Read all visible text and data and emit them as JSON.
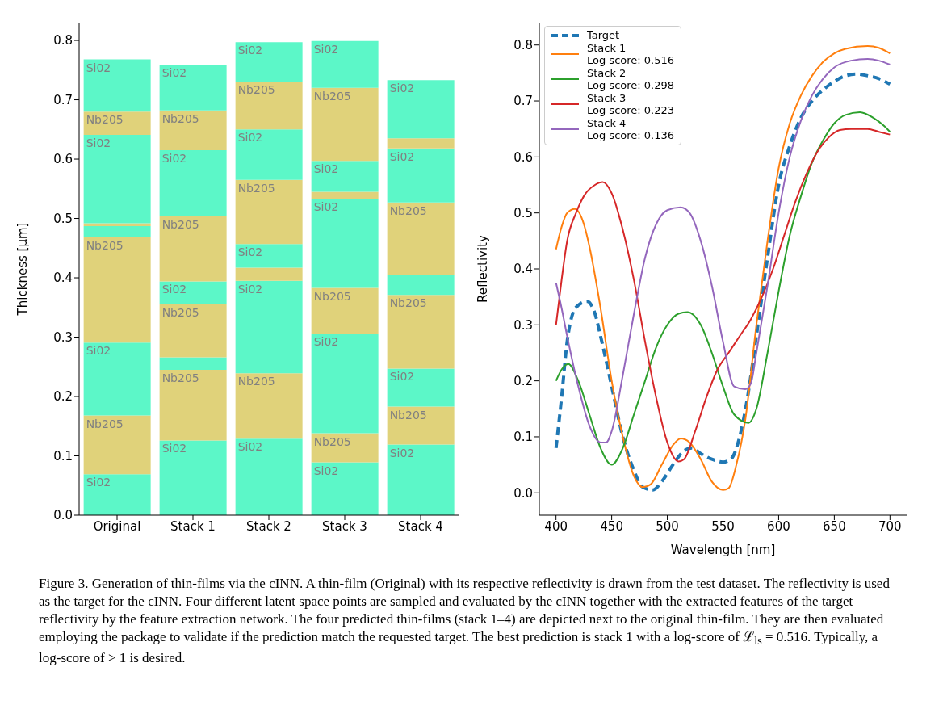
{
  "chart_data": [
    {
      "type": "bar",
      "stacked": true,
      "ylabel": "Thickness [μm]",
      "categories": [
        "Original",
        "Stack 1",
        "Stack 2",
        "Stack 3",
        "Stack 4"
      ],
      "ylim": [
        0,
        0.83
      ],
      "yticks": [
        {
          "value": 0,
          "label": "0.0"
        },
        0.1,
        0.2,
        0.3,
        0.4,
        0.5,
        0.6,
        0.7,
        0.8
      ],
      "grid": false,
      "series": [
        {
          "color": "#5cf7c8",
          "values": [
            0.069,
            0.126,
            0.129,
            0.089,
            0.119
          ],
          "value_labels": [
            "Si02",
            "Si02",
            "Si02",
            "Si02",
            "Si02"
          ]
        },
        {
          "color": "#e0d27a",
          "values": [
            0.099,
            0.119,
            0.11,
            0.049,
            0.064
          ],
          "value_labels": [
            "Nb205",
            "Nb205",
            "Nb205",
            "Nb205",
            "Nb205"
          ]
        },
        {
          "color": "#5cf7c8",
          "values": [
            0.123,
            0.021,
            0.156,
            0.168,
            0.064
          ],
          "value_labels": [
            "Si02",
            null,
            "Si02",
            "Si02",
            "Si02"
          ]
        },
        {
          "color": "#e0d27a",
          "values": [
            0.177,
            0.089,
            0.022,
            0.077,
            0.124
          ],
          "value_labels": [
            "Nb205",
            "Nb205",
            null,
            "Nb205",
            "Nb205"
          ]
        },
        {
          "color": "#5cf7c8",
          "values": [
            0.019,
            0.039,
            0.04,
            0.15,
            0.034
          ],
          "value_labels": [
            null,
            "Si02",
            "Si02",
            "Si02",
            null
          ]
        },
        {
          "color": "#e0d27a",
          "values": [
            0.005,
            0.11,
            0.108,
            0.012,
            0.122
          ],
          "value_labels": [
            null,
            "Nb205",
            "Nb205",
            null,
            "Nb205"
          ]
        },
        {
          "color": "#5cf7c8",
          "values": [
            0.149,
            0.111,
            0.085,
            0.052,
            0.091
          ],
          "value_labels": [
            "Si02",
            "Si02",
            "Si02",
            "Si02",
            "Si02"
          ]
        },
        {
          "color": "#e0d27a",
          "values": [
            0.039,
            0.067,
            0.08,
            0.123,
            0.017
          ],
          "value_labels": [
            "Nb205",
            "Nb205",
            "Nb205",
            "Nb205",
            null
          ]
        },
        {
          "color": "#5cf7c8",
          "values": [
            0.088,
            0.077,
            0.067,
            0.079,
            0.098
          ],
          "value_labels": [
            "Si02",
            "Si02",
            "Si02",
            "Si02",
            "Si02"
          ]
        }
      ]
    },
    {
      "type": "line",
      "xlabel": "Wavelength [nm]",
      "ylabel": "Reflectivity",
      "xlim": [
        385,
        715
      ],
      "xticks": [
        400,
        450,
        500,
        550,
        600,
        650,
        700
      ],
      "ylim": [
        -0.04,
        0.84
      ],
      "yticks": [
        {
          "value": 0,
          "label": "0.0"
        },
        0.1,
        0.2,
        0.3,
        0.4,
        0.5,
        0.6,
        0.7,
        0.8
      ],
      "grid": false,
      "legend": "top left",
      "annotations": [
        "Figure 3. Generation of thin-films via the cINN. A thin-film (Original) with its respective reflectivity is drawn from the test dataset. The reflectivity is used as the target for the cINN. Four different latent space points are sampled and evaluated by the cINN together with the extracted features of the target reflectivity by the feature extraction network. The four predicted thin-films (stack 1–4) are depicted next to the original thin-film. They are then evaluated employing the package to validate if the prediction match the requested target. The best prediction is stack 1 with a log-score of ℒ$_{ls}$ = 0.516. Typically, a log-score of > 1 is desired."
      ],
      "series": [
        {
          "name": "Target",
          "color": "#1f77b4",
          "line_style": "dashed",
          "x": [
            400,
            405,
            410,
            415,
            420,
            428,
            435,
            440,
            450,
            460,
            470,
            478,
            487,
            495,
            505,
            515,
            522,
            530,
            540,
            550,
            557,
            565,
            572,
            580,
            590,
            600,
            610,
            620,
            630,
            640,
            650,
            660,
            670,
            680,
            690,
            700
          ],
          "values": [
            0.08,
            0.17,
            0.27,
            0.32,
            0.335,
            0.342,
            0.32,
            0.28,
            0.19,
            0.1,
            0.04,
            0.01,
            0.005,
            0.02,
            0.05,
            0.075,
            0.08,
            0.07,
            0.06,
            0.055,
            0.06,
            0.1,
            0.17,
            0.28,
            0.42,
            0.55,
            0.62,
            0.67,
            0.7,
            0.72,
            0.735,
            0.745,
            0.748,
            0.745,
            0.74,
            0.73
          ]
        },
        {
          "name": "Stack 1\nLog score: 0.516",
          "color": "#ff7f0e",
          "x": [
            400,
            405,
            410,
            417,
            425,
            430,
            440,
            450,
            460,
            470,
            478,
            485,
            495,
            505,
            512,
            520,
            530,
            540,
            550,
            555,
            562,
            570,
            580,
            590,
            600,
            610,
            620,
            630,
            640,
            650,
            660,
            680,
            690,
            700
          ],
          "values": [
            0.435,
            0.475,
            0.5,
            0.507,
            0.48,
            0.44,
            0.33,
            0.2,
            0.1,
            0.03,
            0.01,
            0.015,
            0.05,
            0.085,
            0.097,
            0.09,
            0.06,
            0.02,
            0.005,
            0.008,
            0.05,
            0.13,
            0.3,
            0.45,
            0.58,
            0.66,
            0.71,
            0.745,
            0.77,
            0.785,
            0.793,
            0.798,
            0.795,
            0.785
          ]
        },
        {
          "name": "Stack 2\nLog score: 0.298",
          "color": "#2ca02c",
          "x": [
            400,
            405,
            411,
            420,
            430,
            440,
            450,
            460,
            470,
            480,
            490,
            500,
            510,
            518,
            530,
            540,
            550,
            560,
            573,
            580,
            590,
            600,
            610,
            620,
            630,
            640,
            650,
            660,
            673,
            685,
            695,
            700
          ],
          "values": [
            0.2,
            0.22,
            0.23,
            0.2,
            0.14,
            0.08,
            0.05,
            0.08,
            0.14,
            0.2,
            0.26,
            0.3,
            0.32,
            0.323,
            0.3,
            0.25,
            0.19,
            0.14,
            0.125,
            0.15,
            0.25,
            0.36,
            0.46,
            0.53,
            0.59,
            0.63,
            0.66,
            0.675,
            0.68,
            0.67,
            0.655,
            0.645
          ]
        },
        {
          "name": "Stack 3\nLog score: 0.223",
          "color": "#d62728",
          "x": [
            400,
            405,
            410,
            418,
            425,
            435,
            442,
            450,
            460,
            470,
            480,
            490,
            500,
            510,
            515,
            525,
            535,
            545,
            555,
            565,
            575,
            585,
            595,
            605,
            615,
            625,
            635,
            645,
            655,
            665,
            680,
            690,
            700
          ],
          "values": [
            0.3,
            0.38,
            0.45,
            0.5,
            0.53,
            0.55,
            0.555,
            0.535,
            0.47,
            0.38,
            0.27,
            0.17,
            0.09,
            0.056,
            0.06,
            0.11,
            0.17,
            0.22,
            0.25,
            0.28,
            0.31,
            0.35,
            0.4,
            0.46,
            0.52,
            0.57,
            0.61,
            0.635,
            0.648,
            0.65,
            0.65,
            0.645,
            0.64
          ]
        },
        {
          "name": "Stack 4\nLog score: 0.136",
          "color": "#9467bd",
          "x": [
            400,
            405,
            410,
            420,
            430,
            440,
            445,
            450,
            460,
            470,
            480,
            490,
            500,
            512,
            520,
            530,
            540,
            550,
            560,
            570,
            575,
            580,
            590,
            600,
            610,
            620,
            630,
            640,
            650,
            665,
            680,
            690,
            700
          ],
          "values": [
            0.375,
            0.33,
            0.28,
            0.19,
            0.12,
            0.09,
            0.09,
            0.11,
            0.21,
            0.32,
            0.42,
            0.48,
            0.505,
            0.51,
            0.5,
            0.45,
            0.37,
            0.27,
            0.19,
            0.185,
            0.195,
            0.25,
            0.37,
            0.5,
            0.6,
            0.665,
            0.71,
            0.74,
            0.76,
            0.772,
            0.775,
            0.772,
            0.765
          ]
        }
      ]
    }
  ]
}
